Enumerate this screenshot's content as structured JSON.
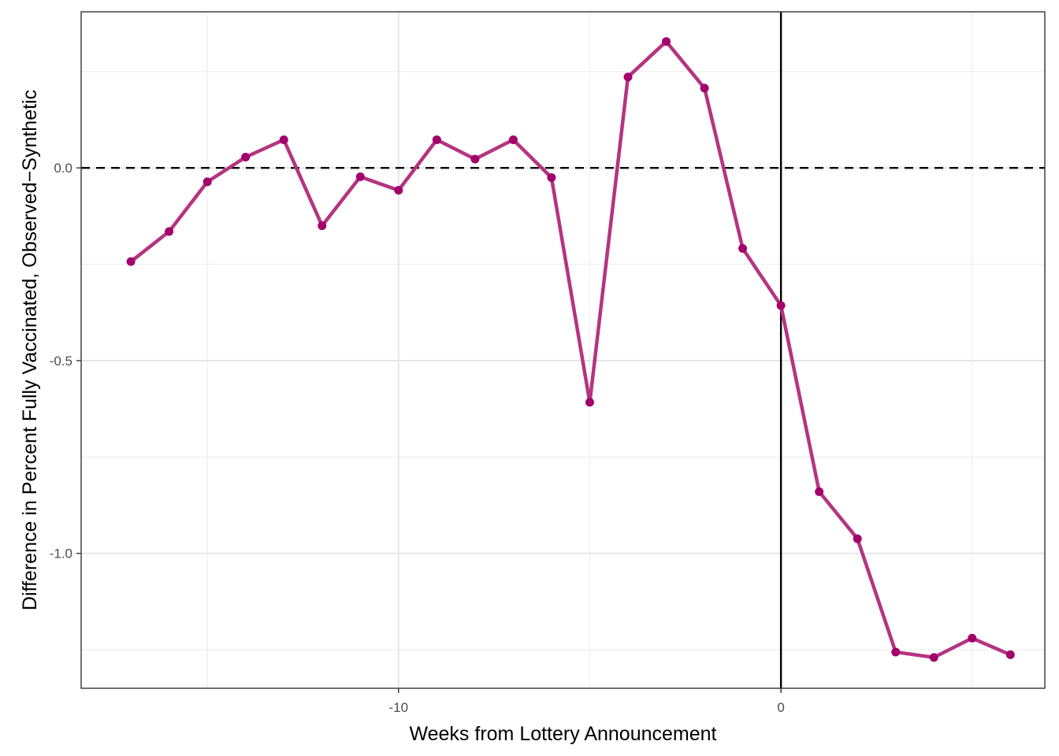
{
  "chart_data": {
    "type": "line",
    "title": "",
    "xlabel": "Weeks from Lottery Announcement",
    "ylabel": "Difference in Percent Fully Vaccinated, Observed−Synthetic",
    "xlim": [
      -18.3,
      6.9
    ],
    "ylim": [
      -1.35,
      0.405
    ],
    "x_ticks": [
      -10,
      0
    ],
    "x_tick_labels": [
      "-10",
      "0"
    ],
    "x_minor_ticks": [
      -15,
      -5,
      5
    ],
    "y_ticks": [
      -1.0,
      -0.5,
      0.0
    ],
    "y_tick_labels": [
      "-1.0",
      "-0.5",
      "0.0"
    ],
    "y_minor_ticks": [
      -1.25,
      -0.75,
      -0.25,
      0.25
    ],
    "grid": true,
    "reference_lines": [
      {
        "axis": "y",
        "value": 0,
        "style": "dashed"
      },
      {
        "axis": "x",
        "value": 0,
        "style": "solid"
      }
    ],
    "series": [
      {
        "color": "#b5347f",
        "point_color": "#a3006d",
        "x": [
          -17,
          -16,
          -15,
          -14,
          -13,
          -12,
          -11,
          -10,
          -9,
          -8,
          -7,
          -6,
          -5,
          -4,
          -3,
          -2,
          -1,
          0,
          1,
          2,
          3,
          4,
          5,
          6
        ],
        "y": [
          -0.243,
          -0.165,
          -0.036,
          0.028,
          0.073,
          -0.15,
          -0.023,
          -0.058,
          0.073,
          0.023,
          0.073,
          -0.025,
          -0.608,
          0.236,
          0.328,
          0.207,
          -0.209,
          -0.357,
          -0.84,
          -0.962,
          -1.256,
          -1.27,
          -1.22,
          -1.263
        ]
      }
    ]
  }
}
